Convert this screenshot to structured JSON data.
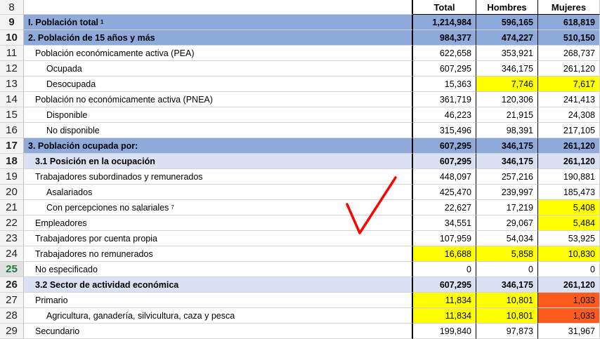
{
  "columns": {
    "total": "Total",
    "hombres": "Hombres",
    "mujeres": "Mujeres"
  },
  "rows": [
    {
      "num": "8",
      "label": "",
      "total": "",
      "hombres": "",
      "mujeres": "",
      "header": true
    },
    {
      "num": "9",
      "label": "I.  Población total",
      "sup": "1",
      "total": "1,214,984",
      "hombres": "596,165",
      "mujeres": "618,819",
      "style": "blue"
    },
    {
      "num": "10",
      "label": "2. Población de 15 años y más",
      "total": "984,377",
      "hombres": "474,227",
      "mujeres": "510,150",
      "style": "blue"
    },
    {
      "num": "11",
      "label": "Población económicamente activa (PEA)",
      "indent": 1,
      "total": "622,658",
      "hombres": "353,921",
      "mujeres": "268,737"
    },
    {
      "num": "12",
      "label": "Ocupada",
      "indent": 2,
      "total": "607,295",
      "hombres": "346,175",
      "mujeres": "261,120"
    },
    {
      "num": "13",
      "label": "Desocupada",
      "indent": 2,
      "total": "15,363",
      "hombres": "7,746",
      "mujeres": "7,617",
      "hl": {
        "hombres": "yellow",
        "mujeres": "yellow"
      }
    },
    {
      "num": "14",
      "label": "Población no económicamente activa (PNEA)",
      "indent": 1,
      "total": "361,719",
      "hombres": "120,306",
      "mujeres": "241,413"
    },
    {
      "num": "15",
      "label": "Disponible",
      "indent": 2,
      "total": "46,223",
      "hombres": "21,915",
      "mujeres": "24,308"
    },
    {
      "num": "16",
      "label": "No disponible",
      "indent": 2,
      "total": "315,496",
      "hombres": "98,391",
      "mujeres": "217,105"
    },
    {
      "num": "17",
      "label": "3. Población ocupada por:",
      "total": "607,295",
      "hombres": "346,175",
      "mujeres": "261,120",
      "style": "blue"
    },
    {
      "num": "18",
      "label": "3.1 Posición en la ocupación",
      "total": "607,295",
      "hombres": "346,175",
      "mujeres": "261,120",
      "style": "light"
    },
    {
      "num": "19",
      "label": "Trabajadores subordinados y remunerados",
      "indent": 1,
      "total": "448,097",
      "hombres": "257,216",
      "mujeres": "190,881"
    },
    {
      "num": "20",
      "label": "Asalariados",
      "indent": 2,
      "total": "425,470",
      "hombres": "239,997",
      "mujeres": "185,473"
    },
    {
      "num": "21",
      "label": "Con percepciones no salariales",
      "sup": "7",
      "indent": 2,
      "total": "22,627",
      "hombres": "17,219",
      "mujeres": "5,408",
      "hl": {
        "mujeres": "yellow"
      }
    },
    {
      "num": "22",
      "label": "Empleadores",
      "indent": 1,
      "total": "34,551",
      "hombres": "29,067",
      "mujeres": "5,484",
      "hl": {
        "mujeres": "yellow"
      }
    },
    {
      "num": "23",
      "label": "Trabajadores por cuenta propia",
      "indent": 1,
      "total": "107,959",
      "hombres": "54,034",
      "mujeres": "53,925"
    },
    {
      "num": "24",
      "label": "Trabajadores no remunerados",
      "indent": 1,
      "total": "16,688",
      "hombres": "5,858",
      "mujeres": "10,830",
      "hl": {
        "total": "yellow",
        "hombres": "yellow",
        "mujeres": "yellow"
      }
    },
    {
      "num": "25",
      "label": "No especificado",
      "indent": 1,
      "total": "0",
      "hombres": "0",
      "mujeres": "0",
      "selected": true
    },
    {
      "num": "26",
      "label": "3.2 Sector de actividad económica",
      "total": "607,295",
      "hombres": "346,175",
      "mujeres": "261,120",
      "style": "light"
    },
    {
      "num": "27",
      "label": "Primario",
      "indent": 1,
      "total": "11,834",
      "hombres": "10,801",
      "mujeres": "1,033",
      "hl": {
        "total": "yellow",
        "hombres": "yellow",
        "mujeres": "orange"
      }
    },
    {
      "num": "28",
      "label": "Agricultura, ganadería, silvicultura, caza y pesca",
      "indent": 2,
      "total": "11,834",
      "hombres": "10,801",
      "mujeres": "1,033",
      "hl": {
        "total": "yellow",
        "hombres": "yellow",
        "mujeres": "orange"
      }
    },
    {
      "num": "29",
      "label": "Secundario",
      "indent": 1,
      "total": "199,840",
      "hombres": "97,873",
      "mujeres": "31,967"
    }
  ],
  "colors": {
    "header_blue": "#8eaadb",
    "header_light": "#d9e1f2",
    "highlight_yellow": "#ffff00",
    "highlight_orange": "#ff5b1f",
    "check_red": "#ff0000"
  },
  "annotation_icon": "red-checkmark-icon"
}
